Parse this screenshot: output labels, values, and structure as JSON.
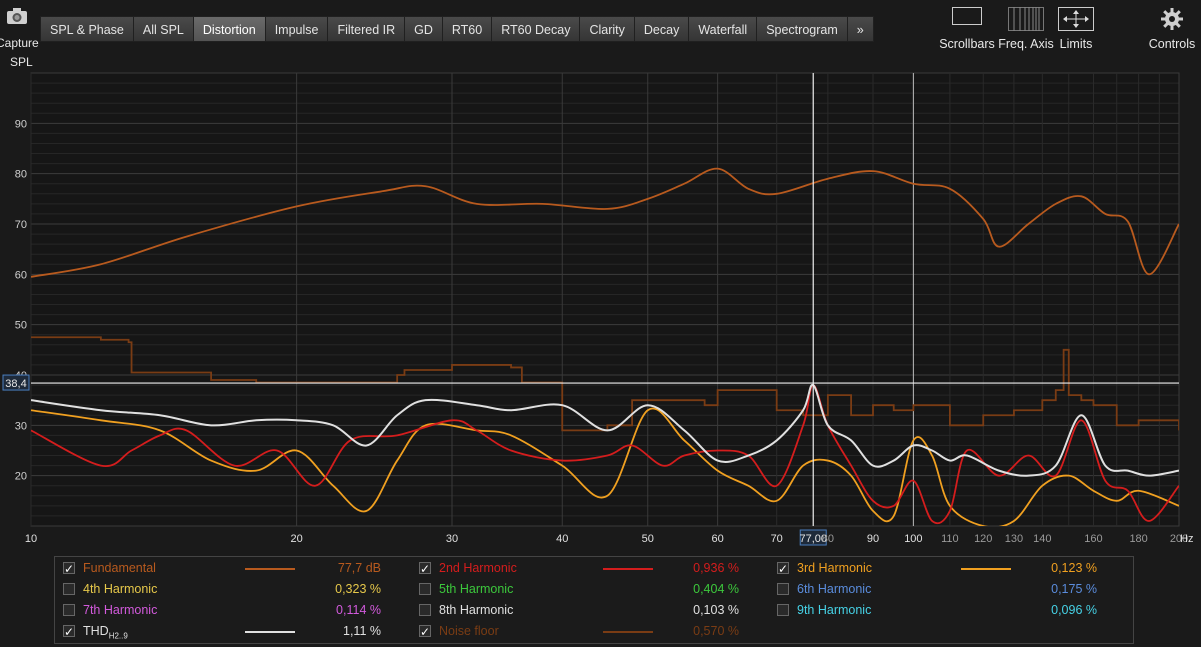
{
  "capture": {
    "label": "Capture",
    "icon": "camera-icon"
  },
  "axis_label": "SPL",
  "tabs": [
    "SPL & Phase",
    "All SPL",
    "Distortion",
    "Impulse",
    "Filtered IR",
    "GD",
    "RT60",
    "RT60 Decay",
    "Clarity",
    "Decay",
    "Waterfall",
    "Spectrogram",
    "»"
  ],
  "active_tab": "Distortion",
  "toolbar": {
    "scrollbars": "Scrollbars",
    "freq_axis": "Freq. Axis",
    "limits": "Limits",
    "controls": "Controls"
  },
  "cursor": {
    "y_readout": "38,4",
    "x_readout": "77,00"
  },
  "x_unit": "Hz",
  "legend": [
    {
      "name": "Fundamental",
      "sub": "",
      "value": "77,7 dB",
      "color": "#b85a1e",
      "checked": true,
      "hasLine": true
    },
    {
      "name": "2nd Harmonic",
      "sub": "",
      "value": "0,936 %",
      "color": "#d41d1d",
      "checked": true,
      "hasLine": true
    },
    {
      "name": "3rd Harmonic",
      "sub": "",
      "value": "0,123 %",
      "color": "#f0a020",
      "checked": true,
      "hasLine": true
    },
    {
      "name": "4th Harmonic",
      "sub": "",
      "value": "0,323 %",
      "color": "#e6c84a",
      "checked": false,
      "hasLine": false
    },
    {
      "name": "5th Harmonic",
      "sub": "",
      "value": "0,404 %",
      "color": "#3cc83c",
      "checked": false,
      "hasLine": false
    },
    {
      "name": "6th Harmonic",
      "sub": "",
      "value": "0,175 %",
      "color": "#5a8cdc",
      "checked": false,
      "hasLine": false
    },
    {
      "name": "7th Harmonic",
      "sub": "",
      "value": "0,114 %",
      "color": "#d25adc",
      "checked": false,
      "hasLine": false
    },
    {
      "name": "8th Harmonic",
      "sub": "",
      "value": "0,103 %",
      "color": "#c8c8c8",
      "checked": false,
      "hasLine": false
    },
    {
      "name": "9th Harmonic",
      "sub": "",
      "value": "0,096 %",
      "color": "#46d2e6",
      "checked": false,
      "hasLine": false
    },
    {
      "name": "THD",
      "sub": "H2..9",
      "value": "1,11 %",
      "color": "#e0e0e0",
      "checked": true,
      "hasLine": true
    },
    {
      "name": "Noise floor",
      "sub": "",
      "value": "0,570 %",
      "color": "#7a3c14",
      "checked": true,
      "hasLine": true
    }
  ],
  "chart_data": {
    "type": "line",
    "xlabel": "Hz",
    "ylabel": "SPL",
    "xscale": "log",
    "xlim": [
      10,
      200
    ],
    "ylim": [
      10,
      100
    ],
    "yticks": [
      20,
      30,
      40,
      50,
      60,
      70,
      80,
      90
    ],
    "xticks": [
      "10",
      "20",
      "30",
      "40",
      "50",
      "60",
      "70",
      "80",
      "90",
      "100",
      "110",
      "120",
      "130",
      "140",
      "160",
      "180",
      "200"
    ],
    "grid": true,
    "series": [
      {
        "name": "Fundamental",
        "color": "#b85a1e",
        "x": [
          10,
          12,
          15,
          20,
          25,
          28,
          32,
          38,
          45,
          50,
          55,
          60,
          65,
          70,
          80,
          90,
          100,
          110,
          120,
          125,
          135,
          145,
          155,
          165,
          175,
          185,
          200
        ],
        "y": [
          59.5,
          62,
          67.5,
          73.5,
          76.5,
          77.5,
          74,
          74,
          73,
          75,
          78,
          81,
          77,
          76,
          79,
          80.5,
          78,
          77,
          71,
          65.5,
          70,
          74,
          75.5,
          72,
          70.5,
          60,
          70
        ]
      },
      {
        "name": "2nd Harmonic",
        "color": "#d41d1d",
        "x": [
          10,
          12,
          13,
          14,
          15,
          17,
          19,
          21,
          23,
          26,
          30,
          32,
          35,
          40,
          45,
          48,
          52,
          55,
          60,
          65,
          70,
          75,
          77,
          80,
          85,
          90,
          95,
          100,
          105,
          110,
          115,
          125,
          135,
          145,
          155,
          165,
          175,
          185,
          200
        ],
        "y": [
          29,
          22,
          25,
          28,
          29,
          22,
          25,
          18,
          27,
          28,
          31,
          29,
          25,
          23,
          24,
          26,
          22,
          24,
          25,
          24,
          18,
          30,
          38,
          30,
          22,
          15,
          14,
          19,
          11,
          13,
          25,
          20,
          24,
          20,
          31,
          19,
          17,
          11,
          18
        ]
      },
      {
        "name": "3rd Harmonic",
        "color": "#f0a020",
        "x": [
          10,
          12,
          14,
          16,
          18,
          20,
          22,
          24,
          26,
          28,
          32,
          35,
          40,
          45,
          50,
          55,
          60,
          65,
          70,
          75,
          80,
          85,
          90,
          95,
          100,
          105,
          110,
          120,
          130,
          140,
          150,
          160,
          170,
          180,
          200
        ],
        "y": [
          33,
          31,
          29,
          23,
          21,
          25,
          18,
          13,
          23,
          30,
          29,
          28,
          22,
          16,
          33,
          27,
          21,
          18,
          15,
          22,
          23,
          20,
          13,
          12,
          27,
          24,
          14,
          10,
          11,
          18,
          20,
          17,
          15,
          17,
          14
        ]
      },
      {
        "name": "THD",
        "color": "#e0e0e0",
        "x": [
          10,
          12,
          14,
          16,
          18,
          20,
          22,
          24,
          26,
          28,
          32,
          35,
          40,
          45,
          50,
          55,
          60,
          65,
          70,
          75,
          77,
          80,
          85,
          90,
          95,
          100,
          105,
          110,
          115,
          125,
          135,
          145,
          155,
          165,
          175,
          185,
          200
        ],
        "y": [
          35,
          33,
          32,
          30,
          31,
          31,
          30,
          26,
          32,
          35,
          34,
          33,
          34,
          29,
          34,
          29,
          23,
          24,
          27,
          33,
          38,
          30,
          27,
          22,
          23,
          26,
          25,
          23,
          24,
          21,
          20,
          22,
          32,
          22,
          21,
          20,
          21
        ]
      },
      {
        "name": "Noise floor",
        "color": "#7a3c14",
        "x": [
          10,
          12,
          12.9,
          13,
          16,
          18,
          20,
          25,
          26,
          26.5,
          30,
          35,
          36,
          40,
          45,
          48,
          55,
          58,
          60,
          65,
          70,
          72,
          75,
          80,
          85,
          90,
          95,
          100,
          110,
          120,
          130,
          140,
          145,
          148,
          150,
          155,
          160,
          170,
          180,
          200
        ],
        "y": [
          47.5,
          47,
          46.5,
          40.5,
          39,
          38.5,
          38.5,
          38.5,
          40,
          41,
          42,
          41.5,
          38.5,
          29,
          30,
          35,
          35,
          34,
          37,
          37,
          33,
          33,
          32,
          36,
          32,
          34,
          33,
          34,
          30,
          32,
          33,
          35,
          37,
          45,
          36,
          35,
          34,
          30,
          31,
          29
        ]
      }
    ]
  }
}
